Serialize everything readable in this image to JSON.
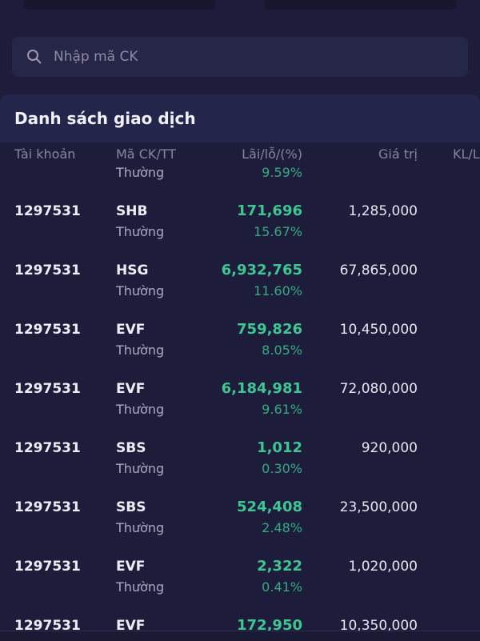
{
  "search": {
    "placeholder": "Nhập mã CK"
  },
  "section": {
    "title": "Danh sách giao dịch"
  },
  "table": {
    "headers": [
      "Tài khoản",
      "Mã CK/TT",
      "Lãi/lỗ/(%)",
      "Giá trị",
      "KL/L"
    ],
    "rows": [
      {
        "type": "Thường",
        "pct": "9.59%"
      },
      {
        "account": "1297531",
        "symbol": "SHB",
        "type": "Thường",
        "pnl": "171,696",
        "pct": "15.67%",
        "value": "1,285,000"
      },
      {
        "account": "1297531",
        "symbol": "HSG",
        "type": "Thường",
        "pnl": "6,932,765",
        "pct": "11.60%",
        "value": "67,865,000"
      },
      {
        "account": "1297531",
        "symbol": "EVF",
        "type": "Thường",
        "pnl": "759,826",
        "pct": "8.05%",
        "value": "10,450,000"
      },
      {
        "account": "1297531",
        "symbol": "EVF",
        "type": "Thường",
        "pnl": "6,184,981",
        "pct": "9.61%",
        "value": "72,080,000"
      },
      {
        "account": "1297531",
        "symbol": "SBS",
        "type": "Thường",
        "pnl": "1,012",
        "pct": "0.30%",
        "value": "920,000"
      },
      {
        "account": "1297531",
        "symbol": "SBS",
        "type": "Thường",
        "pnl": "524,408",
        "pct": "2.48%",
        "value": "23,500,000"
      },
      {
        "account": "1297531",
        "symbol": "EVF",
        "type": "Thường",
        "pnl": "2,322",
        "pct": "0.41%",
        "value": "1,020,000"
      },
      {
        "account": "1297531",
        "symbol": "EVF",
        "pnl": "172,950",
        "value": "10,350,000"
      }
    ]
  }
}
